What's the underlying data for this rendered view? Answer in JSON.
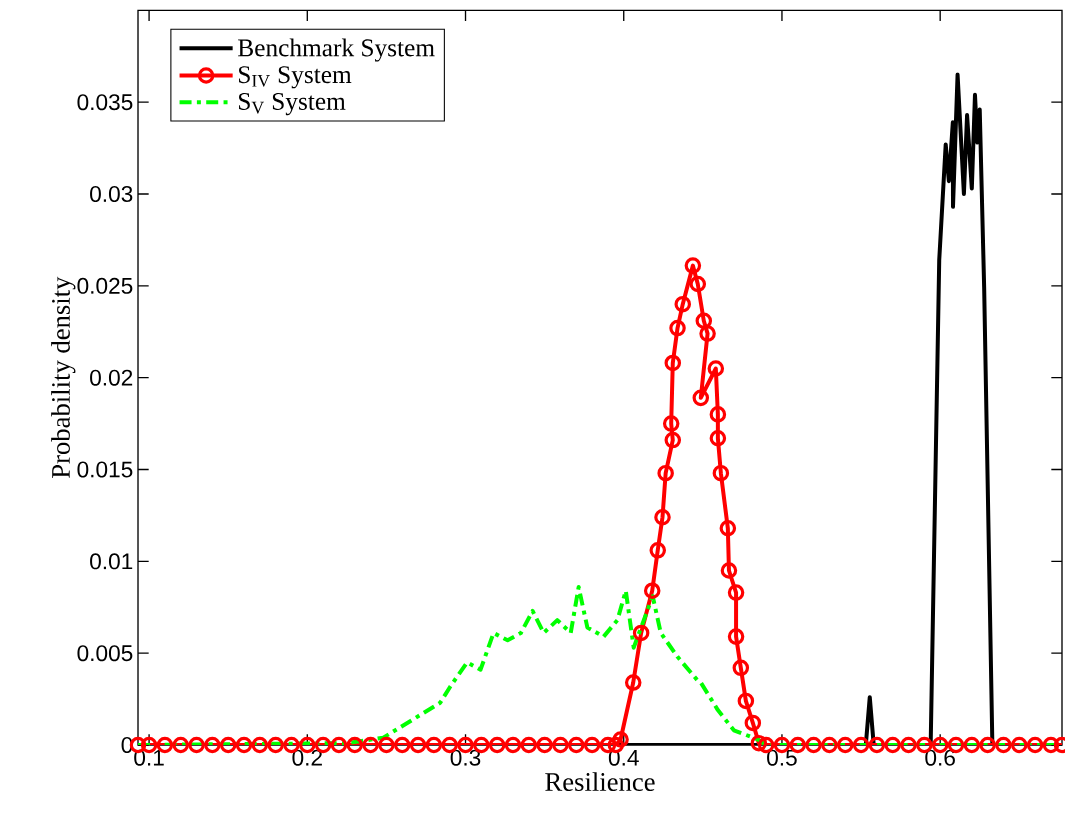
{
  "chart_data": {
    "type": "line",
    "xlabel": "Resilience",
    "ylabel": "Probability density",
    "xlim": [
      0.093,
      0.677
    ],
    "ylim": [
      0,
      0.04
    ],
    "xticks": [
      0.1,
      0.2,
      0.3,
      0.4,
      0.5,
      0.6
    ],
    "yticks": [
      0,
      0.005,
      0.01,
      0.015,
      0.02,
      0.025,
      0.03,
      0.035
    ],
    "grid": false,
    "legend": "top left",
    "series": [
      {
        "name": "Benchmark System",
        "color": "#000000",
        "marker": "none",
        "line_style": "solid",
        "x": [
          0.093,
          0.553,
          0.5555,
          0.558,
          0.594,
          0.5994,
          0.6035,
          0.6055,
          0.608,
          0.6081,
          0.611,
          0.615,
          0.617,
          0.62,
          0.622,
          0.6235,
          0.625,
          0.6278,
          0.633,
          0.677
        ],
        "values": [
          0,
          0,
          0.0026,
          0,
          0,
          0.0264,
          0.0327,
          0.0307,
          0.0339,
          0.0293,
          0.0365,
          0.03,
          0.0343,
          0.0303,
          0.0354,
          0.0328,
          0.0346,
          0.0249,
          0,
          0
        ]
      },
      {
        "name": "S$_{IV}$ System",
        "color": "#ff0000",
        "marker": "circle",
        "line_style": "solid",
        "x": [
          0.093,
          0.1,
          0.11,
          0.12,
          0.13,
          0.14,
          0.15,
          0.16,
          0.17,
          0.18,
          0.19,
          0.2,
          0.21,
          0.22,
          0.23,
          0.24,
          0.25,
          0.26,
          0.27,
          0.28,
          0.29,
          0.3,
          0.31,
          0.32,
          0.33,
          0.34,
          0.35,
          0.36,
          0.37,
          0.38,
          0.39,
          0.395,
          0.398,
          0.406,
          0.411,
          0.418,
          0.4215,
          0.4245,
          0.4265,
          0.431,
          0.43,
          0.431,
          0.434,
          0.4373,
          0.4437,
          0.4468,
          0.4506,
          0.453,
          0.4487,
          0.4582,
          0.4595,
          0.4595,
          0.4614,
          0.4658,
          0.4665,
          0.471,
          0.471,
          0.474,
          0.4772,
          0.4816,
          0.4854,
          0.49,
          0.5,
          0.51,
          0.52,
          0.53,
          0.54,
          0.55,
          0.56,
          0.57,
          0.58,
          0.59,
          0.6,
          0.61,
          0.62,
          0.63,
          0.64,
          0.65,
          0.66,
          0.67,
          0.677
        ],
        "values": [
          0,
          0,
          0,
          0,
          0,
          0,
          0,
          0,
          0,
          0,
          0,
          0,
          0,
          0,
          0,
          0,
          0,
          0,
          0,
          0,
          0,
          0,
          0,
          0,
          0,
          0,
          0,
          0,
          0,
          0,
          0,
          0,
          0.0003,
          0.0034,
          0.0061,
          0.0084,
          0.0106,
          0.0124,
          0.0148,
          0.0166,
          0.0175,
          0.0208,
          0.0227,
          0.024,
          0.0261,
          0.0251,
          0.0231,
          0.0224,
          0.0189,
          0.0205,
          0.018,
          0.0167,
          0.0148,
          0.0118,
          0.0095,
          0.0083,
          0.0059,
          0.0042,
          0.0024,
          0.0012,
          0.0001,
          0,
          0,
          0,
          0,
          0,
          0,
          0,
          0,
          0,
          0,
          0,
          0,
          0,
          0,
          0,
          0,
          0,
          0,
          0,
          0
        ]
      },
      {
        "name": "S$_{V}$ System",
        "color": "#00ff00",
        "marker": "none",
        "line_style": "dashdot",
        "x": [
          0.093,
          0.2253,
          0.248,
          0.267,
          0.284,
          0.2905,
          0.301,
          0.3095,
          0.3177,
          0.3266,
          0.335,
          0.3424,
          0.3494,
          0.358,
          0.3665,
          0.3715,
          0.377,
          0.3873,
          0.396,
          0.4013,
          0.4063,
          0.4183,
          0.4234,
          0.434,
          0.4468,
          0.4487,
          0.4595,
          0.4696,
          0.4848,
          0.49,
          0.677
        ],
        "values": [
          0,
          0.0001,
          0.0004,
          0.0014,
          0.0023,
          0.0032,
          0.0045,
          0.0041,
          0.0061,
          0.0057,
          0.0061,
          0.0073,
          0.0061,
          0.0068,
          0.0061,
          0.0086,
          0.0064,
          0.0059,
          0.0068,
          0.0084,
          0.0053,
          0.0081,
          0.0061,
          0.0048,
          0.0035,
          0.0034,
          0.0019,
          0.0008,
          0.0003,
          0,
          0
        ]
      }
    ]
  }
}
